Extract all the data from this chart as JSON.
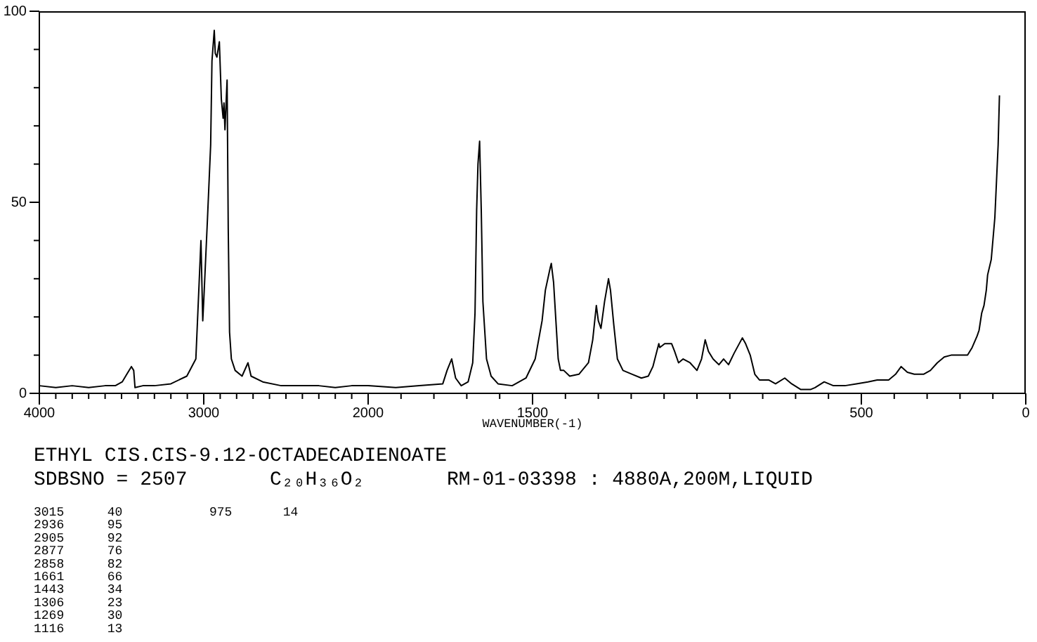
{
  "chart_data": [
    {
      "type": "line",
      "title": "ETHYL CIS.CIS-9.12-OCTADECADIENOATE",
      "color": "#000000",
      "x": [
        4000,
        3900,
        3800,
        3700,
        3600,
        3538,
        3496,
        3468,
        3440,
        3426,
        3418,
        3370,
        3300,
        3200,
        3103,
        3048,
        3028,
        3017,
        3006,
        2998,
        2977,
        2958,
        2950,
        2936,
        2930,
        2920,
        2905,
        2893,
        2882,
        2877,
        2871,
        2858,
        2851,
        2843,
        2832,
        2809,
        2767,
        2731,
        2712,
        2641,
        2529,
        2400,
        2300,
        2200,
        2100,
        2000
      ],
      "values": [
        2,
        1.5,
        2,
        1.5,
        2,
        2,
        3,
        5,
        7,
        6,
        1.5,
        2,
        2,
        2.5,
        4.5,
        9,
        29,
        40,
        19,
        26,
        46,
        65,
        87,
        95,
        89,
        88,
        92,
        77,
        72,
        76,
        69,
        82,
        43,
        16,
        9,
        6,
        4.5,
        8,
        4.5,
        3,
        2,
        2,
        2,
        1.5,
        2,
        2
      ],
      "xlim": [
        4000,
        2000
      ],
      "ylim": [
        0,
        100
      ],
      "xticks": [
        4000,
        {
          "value": 3900,
          "label": null
        },
        {
          "value": 3800,
          "label": null
        },
        {
          "value": 3700,
          "label": null
        },
        {
          "value": 3600,
          "label": null
        },
        {
          "value": 3500,
          "label": null
        },
        {
          "value": 3400,
          "label": null
        },
        {
          "value": 3300,
          "label": null
        },
        {
          "value": 3200,
          "label": null
        },
        {
          "value": 3100,
          "label": null
        },
        3000,
        {
          "value": 2900,
          "label": null
        },
        {
          "value": 2800,
          "label": null
        },
        {
          "value": 2700,
          "label": null
        },
        {
          "value": 2600,
          "label": null
        },
        {
          "value": 2500,
          "label": null
        },
        {
          "value": 2400,
          "label": null
        },
        {
          "value": 2300,
          "label": null
        },
        {
          "value": 2200,
          "label": null
        },
        {
          "value": 2100,
          "label": null
        },
        2000
      ],
      "yticks": [
        0,
        {
          "value": 10,
          "label": null
        },
        {
          "value": 20,
          "label": null
        },
        {
          "value": 30,
          "label": null
        },
        {
          "value": 40,
          "label": null
        },
        50,
        {
          "value": 60,
          "label": null
        },
        {
          "value": 70,
          "label": null
        },
        {
          "value": 80,
          "label": null
        },
        {
          "value": 90,
          "label": null
        },
        100
      ],
      "annotations": [
        "SDBSNO = 2507",
        "C₂₀H₃₆O₂",
        "RM-01-03398 : 4880A,200M,LIQUID",
        "3015 40",
        "2936 95",
        "2905 92",
        "2877 76",
        "2858 82",
        "1661 66",
        "1443 34",
        "1306 23",
        "1269 30",
        "1116 13",
        "975 14"
      ]
    },
    {
      "type": "line",
      "xlabel": "WAVENUMBER(-1)",
      "color": "#000000",
      "tick_labels": "x",
      "x": [
        2000,
        1916,
        1844,
        1773,
        1760,
        1746,
        1734,
        1717,
        1696,
        1682,
        1675,
        1670,
        1666,
        1661,
        1656,
        1651,
        1640,
        1626,
        1605,
        1562,
        1520,
        1492,
        1471,
        1461,
        1446,
        1443,
        1436,
        1429,
        1422,
        1415,
        1405,
        1387,
        1359,
        1330,
        1317,
        1306,
        1300,
        1292,
        1281,
        1269,
        1263,
        1253,
        1242,
        1225,
        1197,
        1169,
        1148,
        1134,
        1116,
        1113,
        1098,
        1077,
        1068,
        1056,
        1042,
        1021,
        1000,
        986,
        975,
        965,
        951,
        933,
        919,
        904,
        887,
        862,
        852,
        838,
        824,
        810,
        782,
        761,
        733,
        712,
        684,
        655,
        641,
        613,
        585,
        550,
        515,
        480,
        452,
        417,
        396,
        379,
        360,
        339,
        311,
        290,
        269,
        248,
        227,
        191,
        177,
        163,
        148,
        142,
        134,
        127,
        120,
        116,
        105,
        94,
        84,
        80
      ],
      "values": [
        2,
        1.5,
        2,
        2.5,
        6,
        9,
        4,
        2,
        3,
        8,
        21,
        48,
        60,
        66,
        48,
        24,
        9,
        4.5,
        2.5,
        2,
        4,
        9,
        19,
        27,
        33,
        34,
        29,
        19,
        9,
        6,
        6,
        4.5,
        5,
        8,
        14,
        23,
        19,
        17,
        24,
        30,
        27,
        18,
        9,
        6,
        5,
        4,
        4.5,
        7,
        13,
        12,
        13,
        13,
        11,
        8,
        9,
        8,
        6,
        9,
        14,
        11,
        9,
        7.5,
        9,
        7.5,
        10.5,
        14.5,
        13,
        10,
        5,
        3.5,
        3.5,
        2.5,
        4,
        2.5,
        1,
        1,
        1.5,
        3,
        2,
        2,
        2.5,
        3,
        3.5,
        3.5,
        5,
        7,
        5.5,
        5,
        5,
        6,
        8,
        9.5,
        10,
        10,
        10,
        12,
        15,
        16.5,
        21,
        23,
        27,
        31,
        35,
        46,
        65,
        78
      ],
      "xlim": [
        2000,
        0
      ],
      "ylim": [
        0,
        100
      ],
      "xticks": [
        {
          "value": 1900,
          "label": null
        },
        {
          "value": 1800,
          "label": null
        },
        {
          "value": 1700,
          "label": null
        },
        {
          "value": 1600,
          "label": null
        },
        1500,
        {
          "value": 1400,
          "label": null
        },
        {
          "value": 1300,
          "label": null
        },
        {
          "value": 1200,
          "label": null
        },
        {
          "value": 1100,
          "label": null
        },
        {
          "value": 1000,
          "label": null
        },
        {
          "value": 900,
          "label": null
        },
        {
          "value": 800,
          "label": null
        },
        {
          "value": 700,
          "label": null
        },
        {
          "value": 600,
          "label": null
        },
        500,
        {
          "value": 400,
          "label": null
        },
        {
          "value": 300,
          "label": null
        },
        {
          "value": 200,
          "label": null
        },
        {
          "value": 100,
          "label": null
        },
        0
      ]
    }
  ]
}
